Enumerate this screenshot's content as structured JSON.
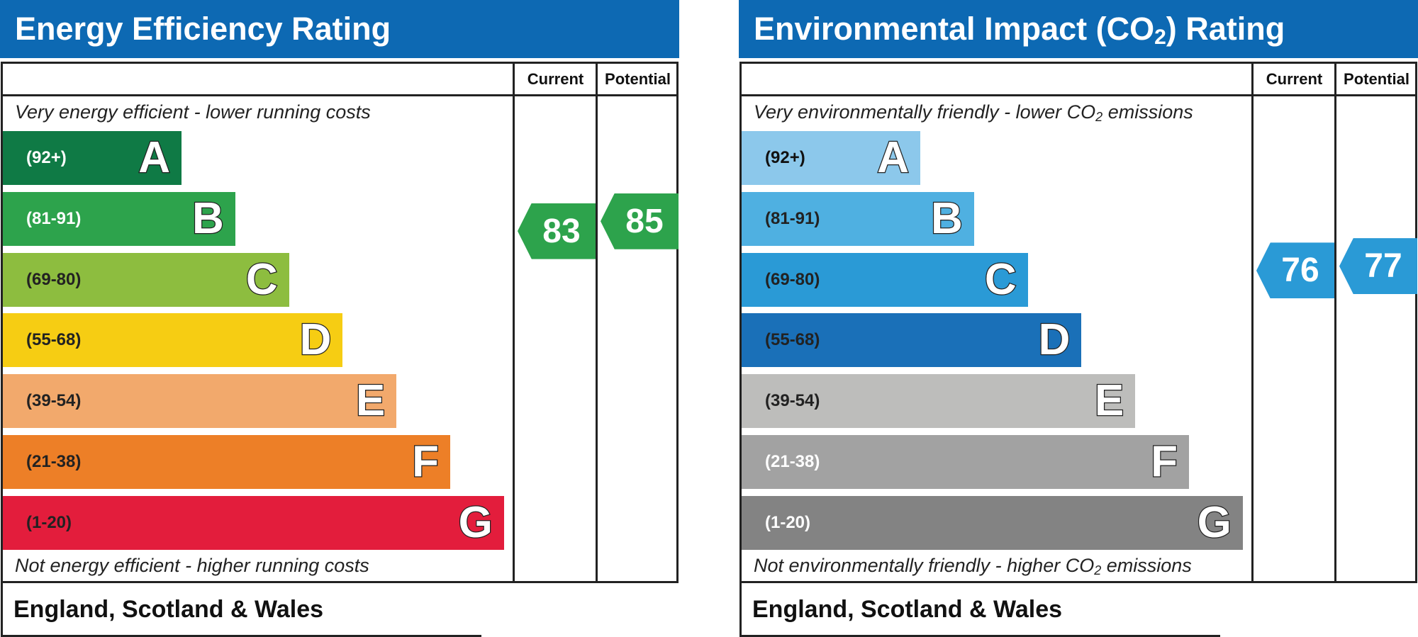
{
  "chart_data": [
    {
      "type": "bar",
      "title": "Energy Efficiency Rating",
      "title_sub": "",
      "title_tail": "",
      "columns": [
        "Current",
        "Potential"
      ],
      "top_note": "Very energy efficient - lower running costs",
      "top_note_sub": "",
      "top_note_tail": "",
      "bottom_note": "Not energy efficient - higher running costs",
      "bottom_note_sub": "",
      "bottom_note_tail": "",
      "footer": "England, Scotland & Wales",
      "bands": [
        {
          "letter": "A",
          "range": "(92+)",
          "color": "#0f7a45",
          "text_color": "#ffffff"
        },
        {
          "letter": "B",
          "range": "(81-91)",
          "color": "#2da34c",
          "text_color": "#ffffff"
        },
        {
          "letter": "C",
          "range": "(69-80)",
          "color": "#8dbd3f",
          "text_color": "#222222"
        },
        {
          "letter": "D",
          "range": "(55-68)",
          "color": "#f6cd13",
          "text_color": "#222222"
        },
        {
          "letter": "E",
          "range": "(39-54)",
          "color": "#f2a96c",
          "text_color": "#222222"
        },
        {
          "letter": "F",
          "range": "(21-38)",
          "color": "#ed7f27",
          "text_color": "#222222"
        },
        {
          "letter": "G",
          "range": "(1-20)",
          "color": "#e31d3c",
          "text_color": "#222222"
        }
      ],
      "current": {
        "value": 83,
        "band": "B",
        "color": "#2da34c"
      },
      "potential": {
        "value": 85,
        "band": "B",
        "color": "#2da34c"
      }
    },
    {
      "type": "bar",
      "title": "Environmental Impact (CO",
      "title_sub": "2",
      "title_tail": ") Rating",
      "columns": [
        "Current",
        "Potential"
      ],
      "top_note": "Very environmentally friendly - lower CO",
      "top_note_sub": "2",
      "top_note_tail": " emissions",
      "bottom_note": "Not environmentally friendly - higher CO",
      "bottom_note_sub": "2",
      "bottom_note_tail": " emissions",
      "footer": "England, Scotland & Wales",
      "bands": [
        {
          "letter": "A",
          "range": "(92+)",
          "color": "#8cc8eb",
          "text_color": "#111111"
        },
        {
          "letter": "B",
          "range": "(81-91)",
          "color": "#4fb0e1",
          "text_color": "#222222"
        },
        {
          "letter": "C",
          "range": "(69-80)",
          "color": "#2a9ad6",
          "text_color": "#222222"
        },
        {
          "letter": "D",
          "range": "(55-68)",
          "color": "#1a70b8",
          "text_color": "#222222"
        },
        {
          "letter": "E",
          "range": "(39-54)",
          "color": "#bdbdbb",
          "text_color": "#222222"
        },
        {
          "letter": "F",
          "range": "(21-38)",
          "color": "#a2a2a2",
          "text_color": "#ffffff"
        },
        {
          "letter": "G",
          "range": "(1-20)",
          "color": "#838383",
          "text_color": "#ffffff"
        }
      ],
      "current": {
        "value": 76,
        "band": "C",
        "color": "#2a9ad6"
      },
      "potential": {
        "value": 77,
        "band": "C",
        "color": "#2a9ad6"
      }
    }
  ]
}
